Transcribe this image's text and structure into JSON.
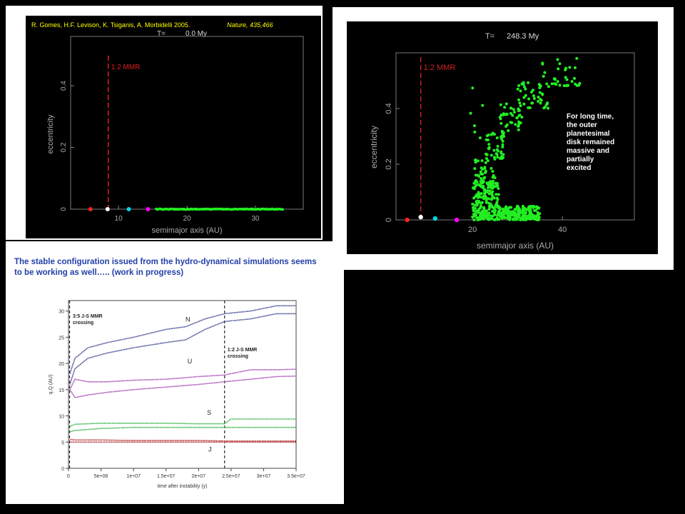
{
  "panel_a": {
    "citation": "R. Gomes, H.F. Levison, K. Tsiganis, A. Morbidelli 2005.",
    "journal": "Nature, 435,466",
    "time_label": "T=",
    "time_value": "0.0 My",
    "chart_data": {
      "type": "scatter",
      "xlabel": "semimajor axis (AU)",
      "ylabel": "eccentricity",
      "xlim": [
        3,
        37
      ],
      "ylim": [
        0,
        0.56
      ],
      "xticks": [
        10,
        20,
        30
      ],
      "yticks": [
        0,
        0.2,
        0.4
      ],
      "annotation": "1:2 MMR",
      "mmr_line_x": 8.5,
      "planets": [
        {
          "a": 5.9,
          "e": 0.0,
          "color": "#ff2020"
        },
        {
          "a": 8.4,
          "e": 0.0,
          "color": "#ffffff"
        },
        {
          "a": 11.5,
          "e": 0.0,
          "color": "#00d8e8"
        },
        {
          "a": 14.3,
          "e": 0.0,
          "color": "#ff00ff"
        }
      ],
      "disk": {
        "a_min": 15.5,
        "a_max": 34.0,
        "e": 0.0,
        "color": "#22ee22"
      }
    }
  },
  "panel_b": {
    "time_label": "T=",
    "time_value": "248.3 My",
    "note": [
      "For long time,",
      "the outer",
      "planetesimal",
      "disk remained",
      "massive and",
      "partially",
      "excited"
    ],
    "chart_data": {
      "type": "scatter",
      "xlabel": "semimajor axis (AU)",
      "ylabel": "eccentricity",
      "xlim": [
        3,
        56
      ],
      "ylim": [
        0,
        0.6
      ],
      "xticks": [
        20,
        40
      ],
      "yticks": [
        0,
        0.2,
        0.4
      ],
      "annotation": "1:2 MMR",
      "mmr_line_x": 8.5,
      "planets": [
        {
          "a": 5.5,
          "e": 0.0,
          "color": "#ff2020"
        },
        {
          "a": 8.5,
          "e": 0.01,
          "color": "#ffffff"
        },
        {
          "a": 11.7,
          "e": 0.005,
          "color": "#00d8e8"
        },
        {
          "a": 16.5,
          "e": 0.0,
          "color": "#ff00ff"
        }
      ],
      "particle_color": "#22ee22",
      "clusters": [
        {
          "a_min": 20.0,
          "a_max": 26.0,
          "e_min": 0.0,
          "e_max": 0.14,
          "n": 210
        },
        {
          "a_min": 26.0,
          "a_max": 35.0,
          "e_min": 0.0,
          "e_max": 0.05,
          "n": 200
        },
        {
          "a_min": 20.5,
          "a_max": 25.0,
          "e_min": 0.12,
          "e_max": 0.22,
          "n": 40
        },
        {
          "a_min": 23.0,
          "a_max": 27.0,
          "e_min": 0.22,
          "e_max": 0.32,
          "n": 45
        },
        {
          "a_min": 26.0,
          "a_max": 31.0,
          "e_min": 0.32,
          "e_max": 0.42,
          "n": 40
        },
        {
          "a_min": 30.0,
          "a_max": 37.0,
          "e_min": 0.4,
          "e_max": 0.5,
          "n": 40
        },
        {
          "a_min": 35.0,
          "a_max": 44.0,
          "e_min": 0.48,
          "e_max": 0.58,
          "n": 35
        },
        {
          "a_min": 19.0,
          "a_max": 23.0,
          "e_min": 0.28,
          "e_max": 0.5,
          "n": 6
        }
      ]
    }
  },
  "panel_c": {
    "caption": "The stable configuration issued from the hydro-dynamical simulations seems to be working as well….. (work in progress)",
    "chart_data": {
      "type": "line",
      "xlabel": "time after instability (y)",
      "ylabel": "q,Q (AU)",
      "xlim": [
        0,
        35000000.0
      ],
      "ylim": [
        0,
        32
      ],
      "xticks": [
        {
          "v": 0,
          "label": "0"
        },
        {
          "v": 5000000.0,
          "label": "5e+06"
        },
        {
          "v": 10000000.0,
          "label": "1e+07"
        },
        {
          "v": 15000000.0,
          "label": "1.5e+07"
        },
        {
          "v": 20000000.0,
          "label": "2e+07"
        },
        {
          "v": 25000000.0,
          "label": "2.5e+07"
        },
        {
          "v": 30000000.0,
          "label": "3e+07"
        },
        {
          "v": 35000000.0,
          "label": "3.5e+07"
        }
      ],
      "yticks": [
        0,
        5,
        10,
        15,
        20,
        25,
        30
      ],
      "vlines": [
        {
          "x": 24000000.0,
          "label": [
            "1:2 J-S MMR",
            "crossing"
          ]
        }
      ],
      "left_annotation": [
        "3:5 J-S MMR",
        "crossing"
      ],
      "planet_labels": [
        {
          "name": "N",
          "x": 18000000.0,
          "y": 28.0
        },
        {
          "name": "U",
          "x": 18300000.0,
          "y": 20.0
        },
        {
          "name": "S",
          "x": 21300000.0,
          "y": 10.2
        },
        {
          "name": "J",
          "x": 21500000.0,
          "y": 3.2
        }
      ],
      "series": [
        {
          "name": "N",
          "color": "#3a3f8e",
          "x": [
            200000.0,
            1000000.0,
            3000000.0,
            6000000.0,
            10000000.0,
            15000000.0,
            18000000.0,
            21000000.0,
            24000000.0,
            28000000.0,
            32000000.0,
            35000000.0
          ],
          "upper": [
            18,
            21,
            23,
            24,
            25,
            26.5,
            27,
            28.5,
            29.5,
            30,
            31,
            31
          ],
          "lower": [
            16,
            19,
            21,
            22,
            23,
            24,
            24.5,
            26.5,
            28,
            28.5,
            29.5,
            29.5
          ]
        },
        {
          "name": "U",
          "color": "#a040b0",
          "x": [
            200000.0,
            1000000.0,
            3000000.0,
            6000000.0,
            10000000.0,
            15000000.0,
            20000000.0,
            24000000.0,
            28000000.0,
            32000000.0,
            35000000.0
          ],
          "upper": [
            15,
            17,
            16.5,
            16.5,
            16.8,
            17,
            17.5,
            17.8,
            18.8,
            18.8,
            18.9
          ],
          "lower": [
            15,
            13.5,
            14,
            14.5,
            15,
            15.5,
            16,
            16.5,
            17,
            17.5,
            17.6
          ]
        },
        {
          "name": "S",
          "color": "#30b040",
          "x": [
            200000.0,
            1000000.0,
            5000000.0,
            10000000.0,
            15000000.0,
            20000000.0,
            24000000.0,
            25000000.0,
            30000000.0,
            35000000.0
          ],
          "upper": [
            8,
            8.4,
            8.6,
            8.6,
            8.6,
            8.5,
            8.5,
            9.4,
            9.4,
            9.4
          ],
          "lower": [
            7,
            7.2,
            7.6,
            7.8,
            7.8,
            7.8,
            7.8,
            7.8,
            7.8,
            7.8
          ]
        },
        {
          "name": "J",
          "color": "#b02828",
          "x": [
            200000.0,
            1000000.0,
            5000000.0,
            10000000.0,
            15000000.0,
            20000000.0,
            25000000.0,
            30000000.0,
            35000000.0
          ],
          "upper": [
            5.5,
            5.4,
            5.4,
            5.3,
            5.3,
            5.3,
            5.2,
            5.2,
            5.2
          ],
          "lower": [
            5.0,
            5.0,
            5.0,
            5.0,
            5.0,
            5.0,
            5.0,
            5.0,
            5.0
          ]
        }
      ]
    }
  }
}
